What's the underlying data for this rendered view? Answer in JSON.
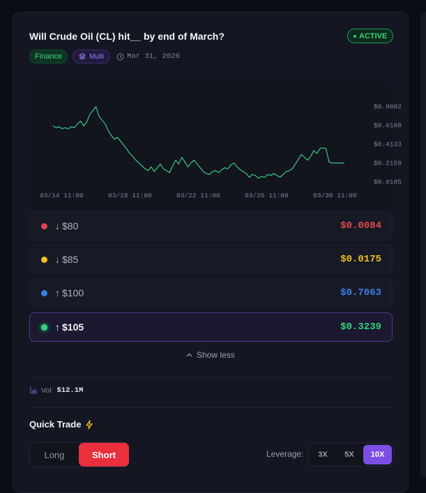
{
  "market": {
    "title": "Will Crude Oil (CL) hit__ by end of March?",
    "status": "ACTIVE",
    "tags": {
      "category": "Finance",
      "type": "Multi"
    },
    "date": "Mar 31, 2026"
  },
  "chart_data": {
    "type": "line",
    "x_ticks": [
      "03/14 11:00",
      "03/18 11:00",
      "03/22 11:00",
      "03/26 11:00",
      "03/30 11:00"
    ],
    "y_ticks": [
      "$0.8082",
      "$0.6108",
      "$0.4133",
      "$0.2159",
      "$0.0185"
    ],
    "ylim": [
      0.0185,
      0.8082
    ],
    "series": [
      {
        "color": "#3fd68a",
        "values": [
          0.6,
          0.58,
          0.59,
          0.57,
          0.58,
          0.57,
          0.59,
          0.58,
          0.62,
          0.65,
          0.6,
          0.64,
          0.72,
          0.76,
          0.8,
          0.7,
          0.66,
          0.62,
          0.55,
          0.5,
          0.46,
          0.48,
          0.44,
          0.4,
          0.36,
          0.31,
          0.28,
          0.24,
          0.21,
          0.18,
          0.15,
          0.13,
          0.17,
          0.12,
          0.16,
          0.2,
          0.15,
          0.13,
          0.11,
          0.18,
          0.24,
          0.2,
          0.27,
          0.22,
          0.17,
          0.21,
          0.24,
          0.2,
          0.16,
          0.12,
          0.1,
          0.09,
          0.12,
          0.13,
          0.11,
          0.14,
          0.16,
          0.15,
          0.19,
          0.21,
          0.17,
          0.14,
          0.12,
          0.1,
          0.06,
          0.09,
          0.08,
          0.05,
          0.07,
          0.06,
          0.09,
          0.08,
          0.1,
          0.08,
          0.06,
          0.09,
          0.12,
          0.13,
          0.15,
          0.2,
          0.25,
          0.3,
          0.27,
          0.24,
          0.28,
          0.34,
          0.31,
          0.36,
          0.37,
          0.36,
          0.22,
          0.21,
          0.21,
          0.21,
          0.21,
          0.21
        ]
      }
    ]
  },
  "outcomes": [
    {
      "direction": "↓",
      "label": "$80",
      "price": "$0.0084",
      "color": "#e0474c"
    },
    {
      "direction": "↓",
      "label": "$85",
      "price": "$0.0175",
      "color": "#f3bf22"
    },
    {
      "direction": "↑",
      "label": "$100",
      "price": "$0.7063",
      "color": "#3d7de6"
    },
    {
      "direction": "↑",
      "label": "$105",
      "price": "$0.3239",
      "color": "#34d27b"
    }
  ],
  "show_less": "Show less",
  "volume": {
    "label": "Vol:",
    "value": "$12.1M"
  },
  "quick_trade": {
    "title": "Quick Trade",
    "sides": {
      "long": "Long",
      "short": "Short"
    },
    "leverage_label": "Leverage:",
    "leverage_options": [
      "3X",
      "5X",
      "10X"
    ],
    "leverage_selected": "10X"
  },
  "colors": {
    "accent": "#7b4fe3",
    "short": "#ea2f3d",
    "active": "#34d27b"
  }
}
